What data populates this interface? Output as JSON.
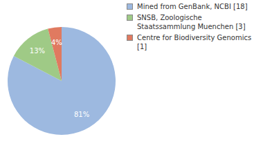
{
  "chart_data": {
    "type": "pie",
    "categories": [
      "Mined from GenBank, NCBI [18]",
      "SNSB, Zoologische Staatssammlung Muenchen [3]",
      "Centre for Biodiversity Genomics [1]"
    ],
    "values": [
      81,
      13,
      4
    ],
    "value_labels": [
      "81%",
      "13%",
      "4%"
    ],
    "colors": [
      "#9db9e0",
      "#9fca86",
      "#e07a60"
    ],
    "data_labels": true
  }
}
